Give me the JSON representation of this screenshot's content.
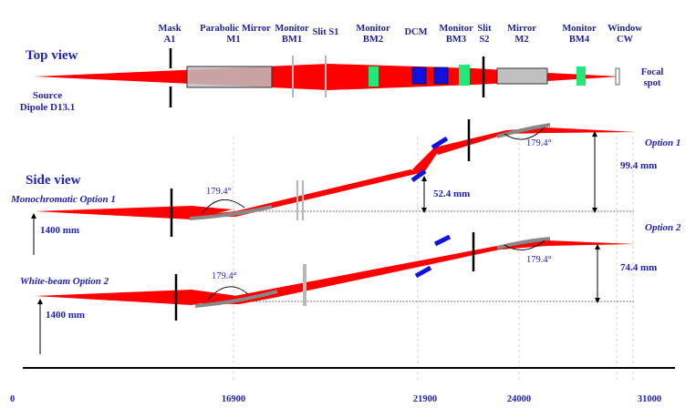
{
  "components": [
    {
      "id": "mask",
      "line1": "Mask",
      "line2": "A1"
    },
    {
      "id": "parabolic",
      "line1": "Parabolic Mirror",
      "line2": "M1"
    },
    {
      "id": "bm1",
      "line1": "Monitor",
      "line2": "BM1"
    },
    {
      "id": "slit1",
      "line1": "Slit S1",
      "line2": ""
    },
    {
      "id": "bm2",
      "line1": "Monitor",
      "line2": "BM2"
    },
    {
      "id": "dcm",
      "line1": "DCM",
      "line2": ""
    },
    {
      "id": "bm3",
      "line1": "Monitor",
      "line2": "BM3"
    },
    {
      "id": "slit2",
      "line1": "Slit",
      "line2": "S2"
    },
    {
      "id": "mirror2",
      "line1": "Mirror",
      "line2": "M2"
    },
    {
      "id": "bm4",
      "line1": "Monitor",
      "line2": "BM4"
    },
    {
      "id": "window",
      "line1": "Window",
      "line2": "CW"
    }
  ],
  "top_view": {
    "title": "Top view",
    "source_line1": "Source",
    "source_line2": "Dipole D13.1",
    "focal_line1": "Focal",
    "focal_line2": "spot"
  },
  "side_view": {
    "title": "Side view",
    "option1_label": "Monochromatic Option 1",
    "option2_label": "White-beam Option 2",
    "option1_tag": "Option 1",
    "option2_tag": "Option 2",
    "height1": "1400 mm",
    "height2": "1400 mm",
    "angle_m1_opt1": "179.4°",
    "angle_m2_opt1": "179.4°",
    "angle_m1_opt2": "179.4°",
    "angle_m2_opt2": "179.4°",
    "offset_dcm": "52.4 mm",
    "offset_opt1": "99.4 mm",
    "offset_opt2": "74.4 mm"
  },
  "axis": {
    "ticks": [
      "0",
      "16900",
      "21900",
      "24000",
      "31000"
    ]
  },
  "colors": {
    "beam": "#ff0000",
    "label": "#1f1fbf",
    "monitor": "#22e87a",
    "dcm": "#1010e0",
    "mirror_fill": "#c0c0c0"
  }
}
